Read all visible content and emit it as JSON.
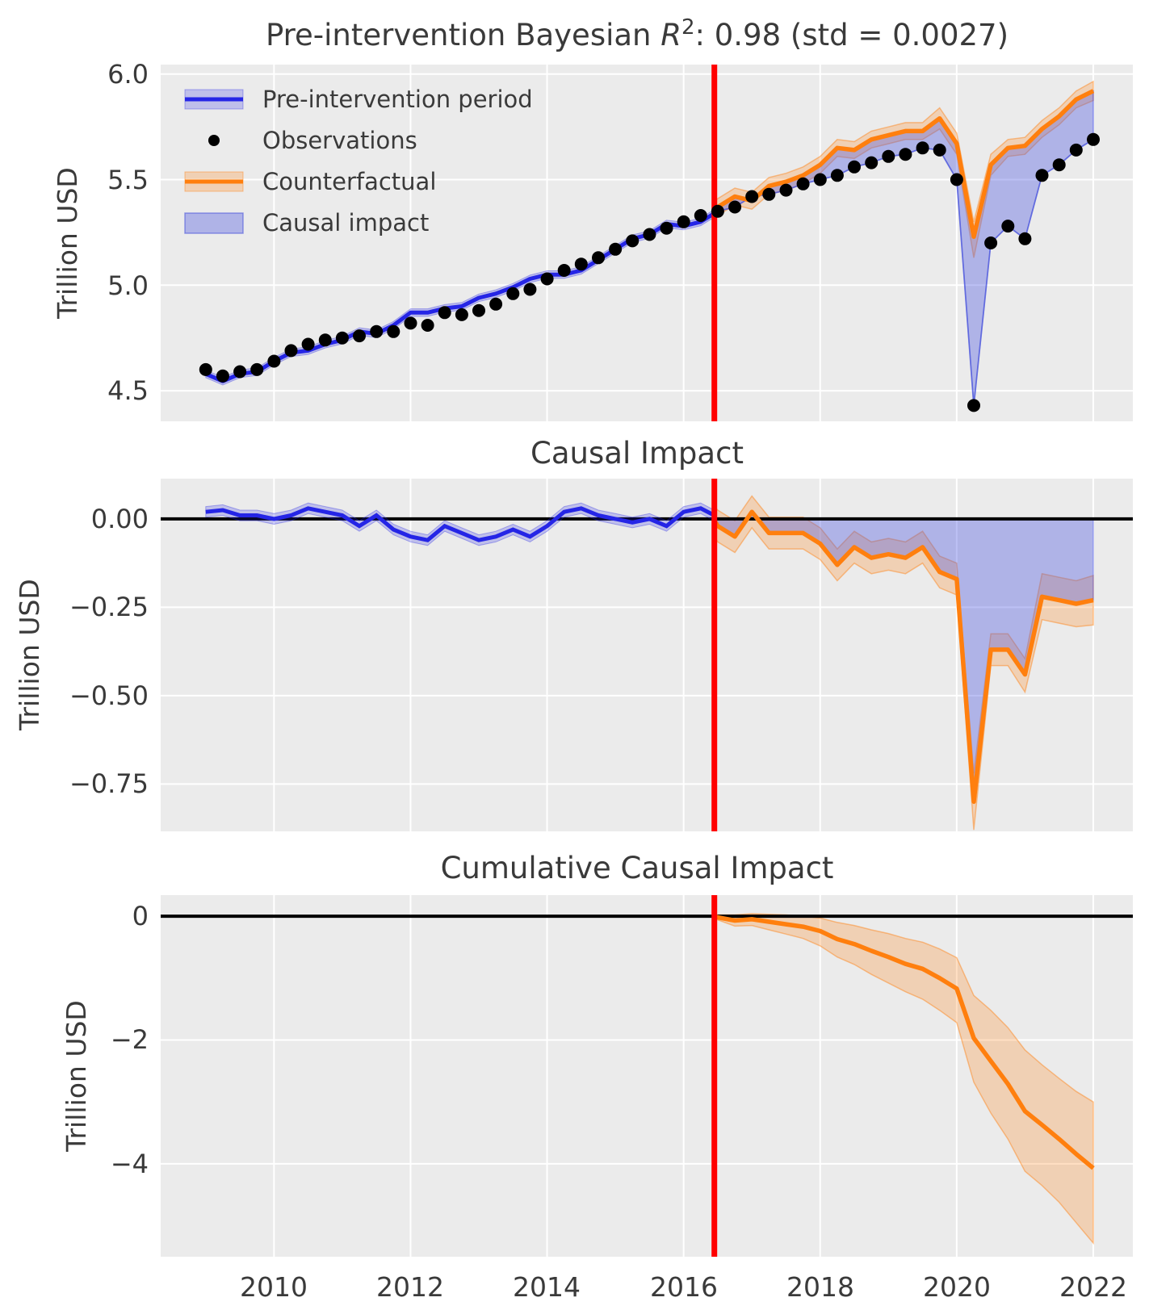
{
  "figure": {
    "background": "#ffffff",
    "panel_background": "#ebebeb",
    "grid_color": "#ffffff",
    "text_color": "#3a3a3a"
  },
  "colors": {
    "pre_line": "#2525e6",
    "pre_band": "rgba(37,37,230,0.22)",
    "pre_band_edge": "rgba(37,37,230,0.35)",
    "counterfactual_line": "#ff7f0e",
    "counterfactual_band": "rgba(255,127,14,0.25)",
    "counterfactual_band_edge": "rgba(255,127,14,0.45)",
    "causal_fill": "rgba(80,90,225,0.38)",
    "causal_fill_edge": "rgba(70,80,220,0.55)",
    "observation_dot": "#000000",
    "intervention_line": "#ff0000",
    "zero_line": "#000000"
  },
  "chart_data": {
    "type": "line",
    "frequency": "quarterly",
    "intervention_x": 2016.45,
    "x_axis": {
      "range": [
        2008.34,
        2022.58
      ],
      "tick_values": [
        2010,
        2012,
        2014,
        2016,
        2018,
        2020,
        2022
      ],
      "tick_labels": [
        "2010",
        "2012",
        "2014",
        "2016",
        "2018",
        "2020",
        "2022"
      ]
    },
    "panels": [
      {
        "name": "observed-vs-counterfactual",
        "title_parts": {
          "prefix": "Pre-intervention Bayesian ",
          "r_symbol": "R",
          "exponent": "2",
          "suffix": ": 0.98 (std = 0.0027)"
        },
        "ylabel": "Trillion USD",
        "ylim": [
          4.355,
          6.045
        ],
        "yticks": {
          "values": [
            6.0,
            5.5,
            5.0,
            4.5
          ],
          "labels": [
            "6.0",
            "5.5",
            "5.0",
            "4.5"
          ]
        },
        "legend": [
          {
            "label": "Pre-intervention period",
            "swatch": "blue-line-band"
          },
          {
            "label": "Observations",
            "swatch": "black-dot"
          },
          {
            "label": "Counterfactual",
            "swatch": "orange-line-band"
          },
          {
            "label": "Causal impact",
            "swatch": "blue-fill"
          }
        ],
        "observations": {
          "t": [
            2009.0,
            2009.25,
            2009.5,
            2009.75,
            2010.0,
            2010.25,
            2010.5,
            2010.75,
            2011.0,
            2011.25,
            2011.5,
            2011.75,
            2012.0,
            2012.25,
            2012.5,
            2012.75,
            2013.0,
            2013.25,
            2013.5,
            2013.75,
            2014.0,
            2014.25,
            2014.5,
            2014.75,
            2015.0,
            2015.25,
            2015.5,
            2015.75,
            2016.0,
            2016.25,
            2016.5,
            2016.75,
            2017.0,
            2017.25,
            2017.5,
            2017.75,
            2018.0,
            2018.25,
            2018.5,
            2018.75,
            2019.0,
            2019.25,
            2019.5,
            2019.75,
            2020.0,
            2020.25,
            2020.5,
            2020.75,
            2021.0,
            2021.25,
            2021.5,
            2021.75,
            2022.0
          ],
          "v": [
            4.6,
            4.57,
            4.59,
            4.6,
            4.64,
            4.69,
            4.72,
            4.74,
            4.75,
            4.76,
            4.78,
            4.78,
            4.82,
            4.81,
            4.87,
            4.86,
            4.88,
            4.91,
            4.96,
            4.98,
            5.03,
            5.07,
            5.1,
            5.13,
            5.17,
            5.21,
            5.24,
            5.27,
            5.3,
            5.33,
            5.35,
            5.37,
            5.42,
            5.43,
            5.45,
            5.48,
            5.5,
            5.52,
            5.56,
            5.58,
            5.61,
            5.62,
            5.65,
            5.64,
            5.5,
            4.43,
            5.2,
            5.28,
            5.22,
            5.52,
            5.57,
            5.64,
            5.69
          ]
        },
        "pre_fit": {
          "t": [
            2009.0,
            2009.25,
            2009.5,
            2009.75,
            2010.0,
            2010.25,
            2010.5,
            2010.75,
            2011.0,
            2011.25,
            2011.5,
            2011.75,
            2012.0,
            2012.25,
            2012.5,
            2012.75,
            2013.0,
            2013.25,
            2013.5,
            2013.75,
            2014.0,
            2014.25,
            2014.5,
            2014.75,
            2015.0,
            2015.25,
            2015.5,
            2015.75,
            2016.0,
            2016.25,
            2016.45
          ],
          "v": [
            4.58,
            4.545,
            4.58,
            4.59,
            4.64,
            4.68,
            4.69,
            4.72,
            4.74,
            4.78,
            4.77,
            4.81,
            4.87,
            4.87,
            4.89,
            4.9,
            4.94,
            4.96,
            4.99,
            5.03,
            5.05,
            5.05,
            5.07,
            5.12,
            5.17,
            5.22,
            5.24,
            5.29,
            5.28,
            5.3,
            5.34
          ],
          "band_halfwidth": 0.018
        },
        "counterfactual": {
          "t": [
            2016.45,
            2016.5,
            2016.75,
            2017.0,
            2017.25,
            2017.5,
            2017.75,
            2018.0,
            2018.25,
            2018.5,
            2018.75,
            2019.0,
            2019.25,
            2019.5,
            2019.75,
            2020.0,
            2020.25,
            2020.5,
            2020.75,
            2021.0,
            2021.25,
            2021.5,
            2021.75,
            2022.0
          ],
          "v": [
            5.355,
            5.37,
            5.42,
            5.4,
            5.47,
            5.49,
            5.52,
            5.57,
            5.65,
            5.64,
            5.69,
            5.71,
            5.73,
            5.73,
            5.79,
            5.67,
            5.23,
            5.57,
            5.65,
            5.66,
            5.74,
            5.8,
            5.88,
            5.92
          ],
          "upper": [
            5.395,
            5.41,
            5.46,
            5.44,
            5.51,
            5.53,
            5.56,
            5.61,
            5.69,
            5.68,
            5.73,
            5.75,
            5.77,
            5.77,
            5.84,
            5.72,
            5.3,
            5.62,
            5.69,
            5.7,
            5.78,
            5.84,
            5.92,
            5.965
          ],
          "lower": [
            5.315,
            5.33,
            5.38,
            5.36,
            5.43,
            5.45,
            5.48,
            5.53,
            5.61,
            5.6,
            5.65,
            5.67,
            5.69,
            5.69,
            5.74,
            5.62,
            5.13,
            5.52,
            5.61,
            5.62,
            5.7,
            5.76,
            5.84,
            5.875
          ]
        }
      },
      {
        "name": "pointwise-causal-impact",
        "title": "Causal Impact",
        "ylabel": "Trillion USD",
        "ylim": [
          -0.884,
          0.114
        ],
        "yticks": {
          "values": [
            0.0,
            -0.25,
            -0.5,
            -0.75
          ],
          "labels": [
            "0.00",
            "−0.25",
            "−0.50",
            "−0.75"
          ]
        },
        "zero_line": 0,
        "pre_impact": {
          "t": [
            2009.0,
            2009.25,
            2009.5,
            2009.75,
            2010.0,
            2010.25,
            2010.5,
            2010.75,
            2011.0,
            2011.25,
            2011.5,
            2011.75,
            2012.0,
            2012.25,
            2012.5,
            2012.75,
            2013.0,
            2013.25,
            2013.5,
            2013.75,
            2014.0,
            2014.25,
            2014.5,
            2014.75,
            2015.0,
            2015.25,
            2015.5,
            2015.75,
            2016.0,
            2016.25,
            2016.45
          ],
          "v": [
            0.02,
            0.025,
            0.01,
            0.01,
            0.0,
            0.01,
            0.03,
            0.02,
            0.01,
            -0.02,
            0.01,
            -0.03,
            -0.05,
            -0.06,
            -0.02,
            -0.04,
            -0.06,
            -0.05,
            -0.03,
            -0.05,
            -0.02,
            0.02,
            0.03,
            0.01,
            0.0,
            -0.01,
            0.0,
            -0.02,
            0.02,
            0.03,
            0.01
          ],
          "band_halfwidth": 0.015
        },
        "post_impact": {
          "t": [
            2016.45,
            2016.5,
            2016.75,
            2017.0,
            2017.25,
            2017.5,
            2017.75,
            2018.0,
            2018.25,
            2018.5,
            2018.75,
            2019.0,
            2019.25,
            2019.5,
            2019.75,
            2020.0,
            2020.25,
            2020.5,
            2020.75,
            2021.0,
            2021.25,
            2021.5,
            2021.75,
            2022.0
          ],
          "v": [
            -0.005,
            -0.02,
            -0.05,
            0.02,
            -0.04,
            -0.04,
            -0.04,
            -0.07,
            -0.13,
            -0.08,
            -0.11,
            -0.1,
            -0.11,
            -0.08,
            -0.15,
            -0.17,
            -0.8,
            -0.37,
            -0.37,
            -0.44,
            -0.22,
            -0.23,
            -0.24,
            -0.23
          ],
          "upper": [
            0.035,
            0.025,
            -0.005,
            0.065,
            0.005,
            0.005,
            0.005,
            -0.025,
            -0.085,
            -0.035,
            -0.065,
            -0.055,
            -0.065,
            -0.035,
            -0.105,
            -0.125,
            -0.72,
            -0.325,
            -0.325,
            -0.395,
            -0.155,
            -0.165,
            -0.175,
            -0.16
          ],
          "lower": [
            -0.05,
            -0.065,
            -0.095,
            -0.025,
            -0.085,
            -0.085,
            -0.085,
            -0.115,
            -0.175,
            -0.125,
            -0.155,
            -0.145,
            -0.155,
            -0.125,
            -0.195,
            -0.215,
            -0.88,
            -0.415,
            -0.415,
            -0.49,
            -0.285,
            -0.295,
            -0.305,
            -0.3
          ]
        }
      },
      {
        "name": "cumulative-causal-impact",
        "title": "Cumulative Causal Impact",
        "ylabel": "Trillion USD",
        "ylim": [
          -5.5,
          0.34
        ],
        "yticks": {
          "values": [
            0,
            -2,
            -4
          ],
          "labels": [
            "0",
            "−2",
            "−4"
          ]
        },
        "zero_line": 0,
        "cumulative": {
          "t": [
            2016.45,
            2016.5,
            2016.75,
            2017.0,
            2017.25,
            2017.5,
            2017.75,
            2018.0,
            2018.25,
            2018.5,
            2018.75,
            2019.0,
            2019.25,
            2019.5,
            2019.75,
            2020.0,
            2020.25,
            2020.5,
            2020.75,
            2021.0,
            2021.25,
            2021.5,
            2021.75,
            2022.0
          ],
          "v": [
            0,
            -0.02,
            -0.07,
            -0.05,
            -0.09,
            -0.13,
            -0.17,
            -0.24,
            -0.37,
            -0.45,
            -0.56,
            -0.66,
            -0.77,
            -0.85,
            -1.0,
            -1.17,
            -1.97,
            -2.34,
            -2.71,
            -3.15,
            -3.37,
            -3.6,
            -3.84,
            -4.07
          ],
          "upper": [
            0,
            0.02,
            0.02,
            0.04,
            0.03,
            0.02,
            0.0,
            -0.03,
            -0.1,
            -0.15,
            -0.22,
            -0.28,
            -0.36,
            -0.42,
            -0.53,
            -0.67,
            -1.28,
            -1.52,
            -1.8,
            -2.16,
            -2.4,
            -2.62,
            -2.83,
            -3.0
          ],
          "lower": [
            0,
            -0.06,
            -0.16,
            -0.15,
            -0.22,
            -0.29,
            -0.36,
            -0.48,
            -0.66,
            -0.78,
            -0.94,
            -1.08,
            -1.22,
            -1.34,
            -1.52,
            -1.72,
            -2.68,
            -3.18,
            -3.6,
            -4.12,
            -4.35,
            -4.62,
            -4.95,
            -5.28
          ]
        }
      }
    ]
  }
}
